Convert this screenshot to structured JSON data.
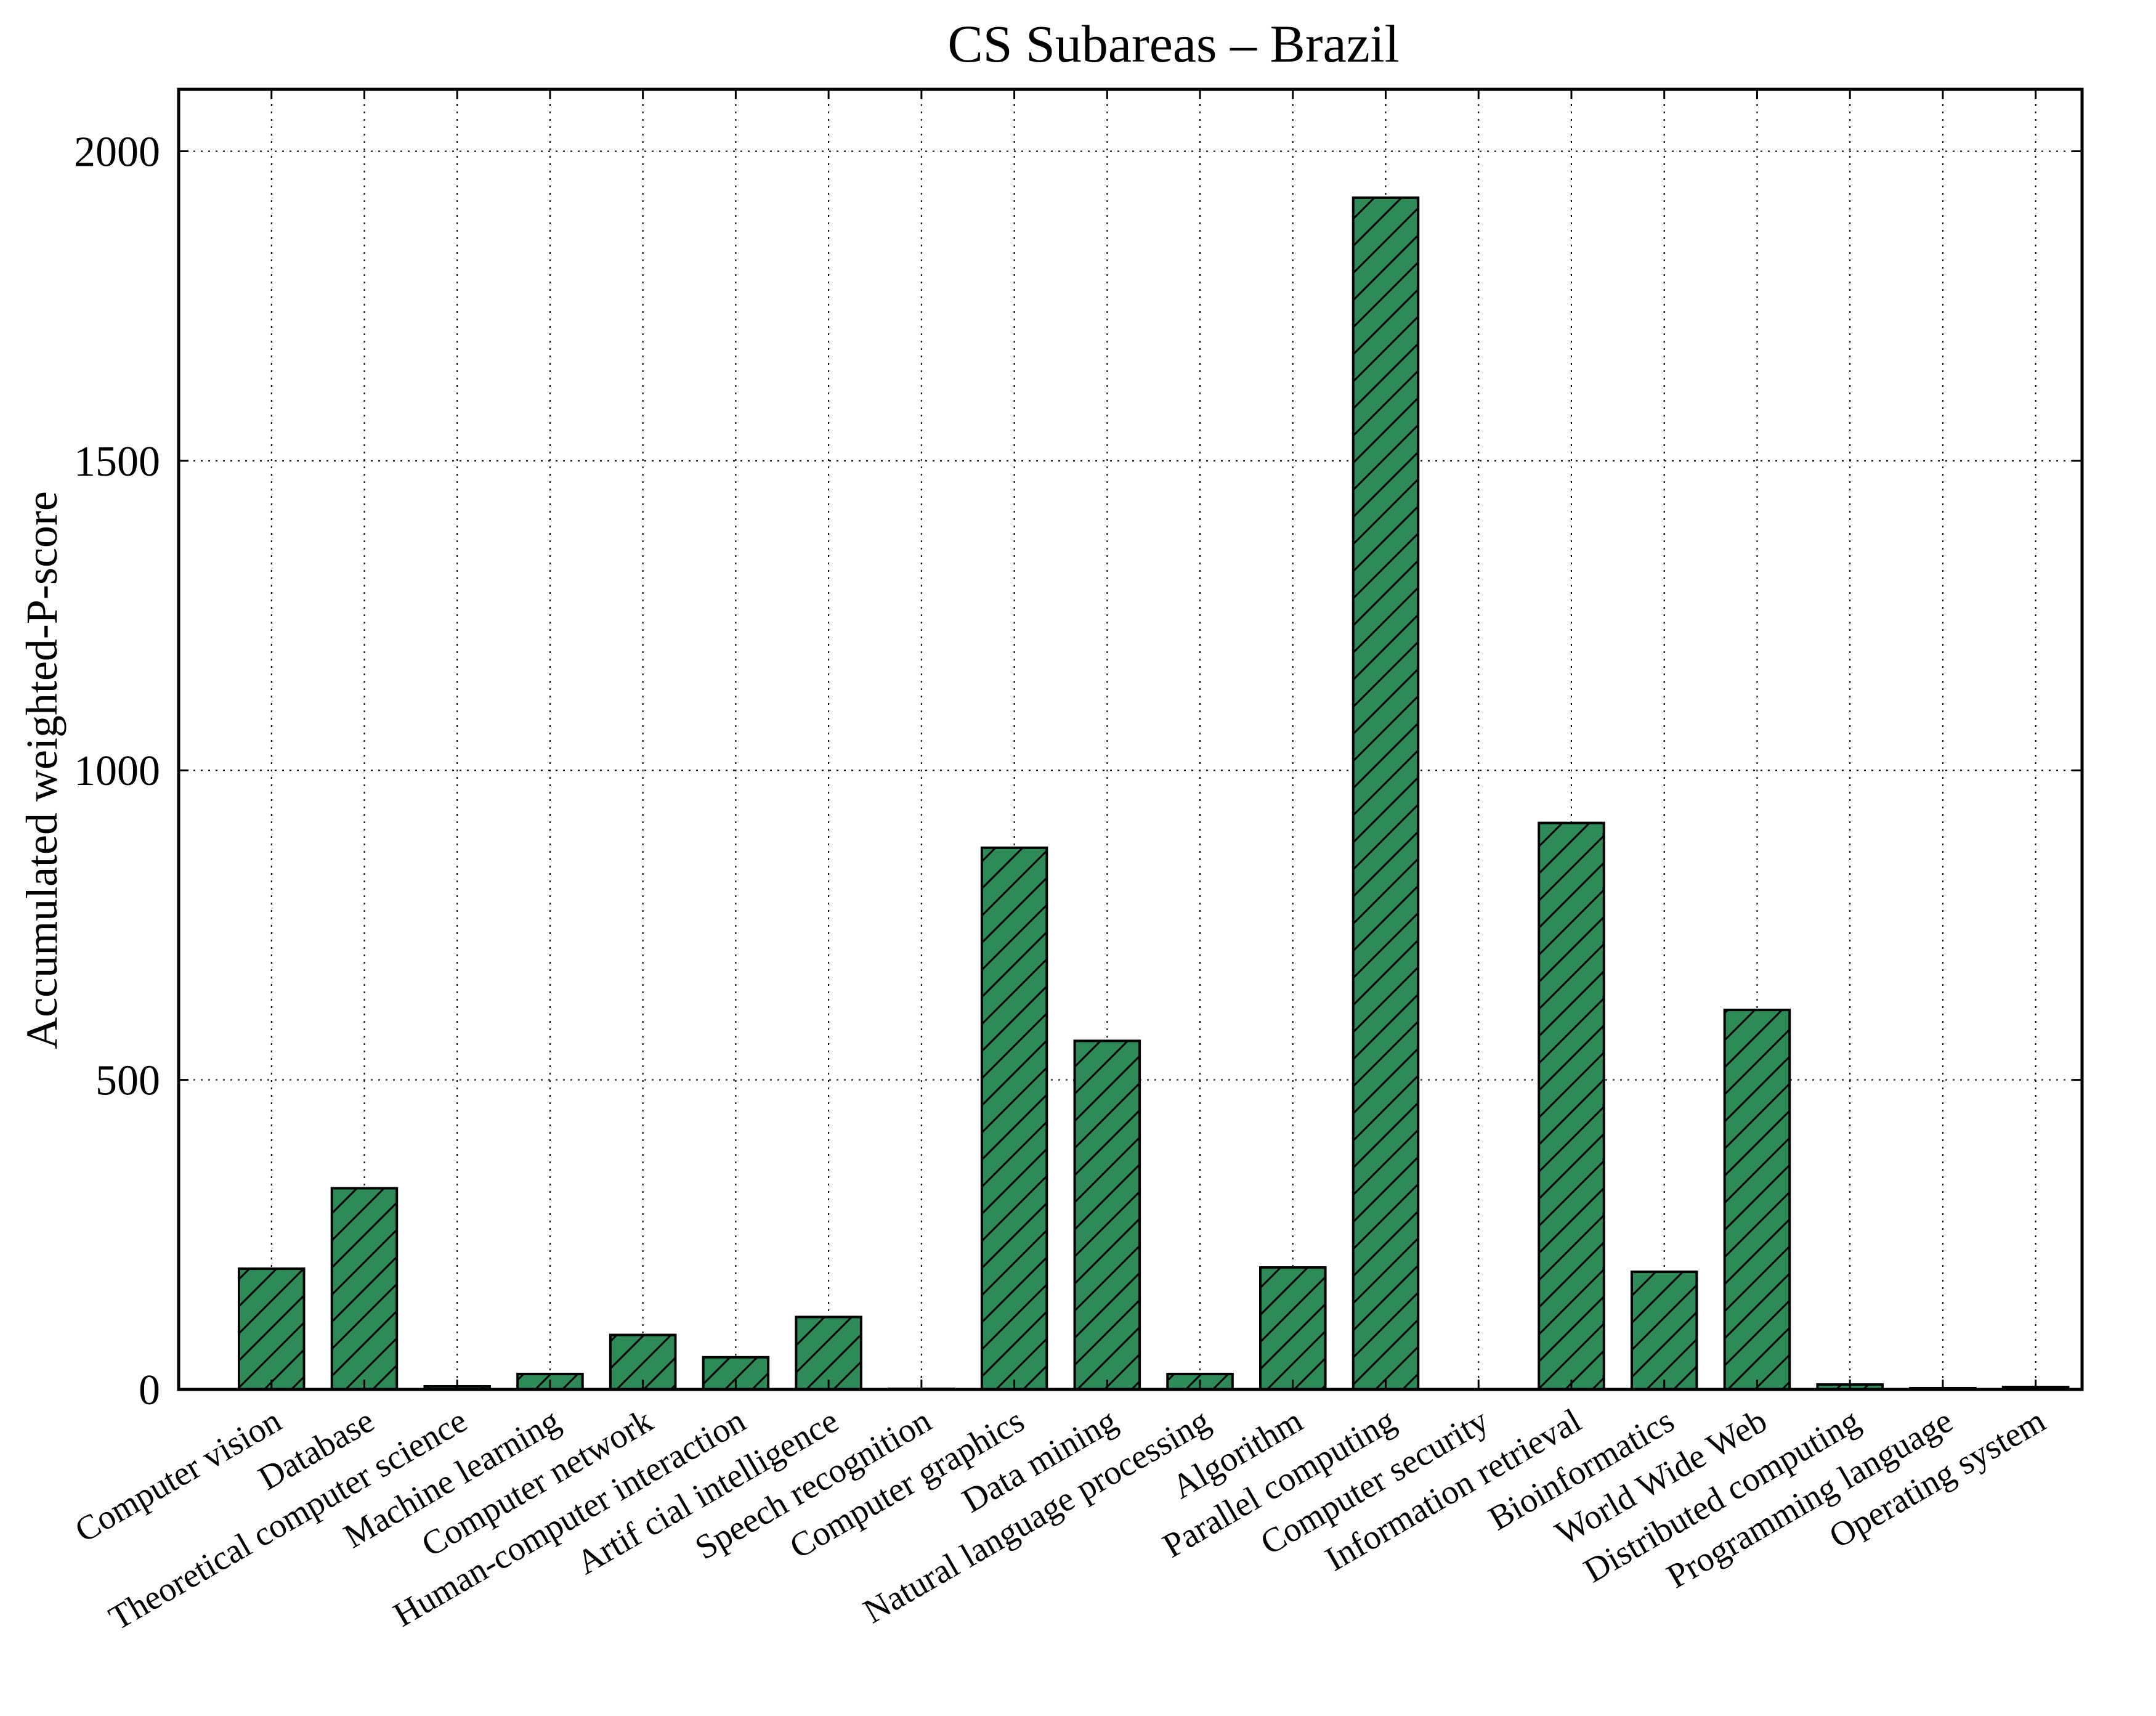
{
  "chart_data": {
    "type": "bar",
    "title": "CS Subareas – Brazil",
    "xlabel": "",
    "ylabel": "Accumulated weighted-P-score",
    "ylim": [
      0,
      2100
    ],
    "yticks": [
      0,
      500,
      1000,
      1500,
      2000
    ],
    "grid": true,
    "bar_color": "#2e8b57",
    "categories": [
      "Computer vision",
      "Database",
      "Theoretical computer science",
      "Machine learning",
      "Computer network",
      "Human-computer interaction",
      "Artif cial intelligence",
      "Speech recognition",
      "Computer graphics",
      "Data mining",
      "Natural language processing",
      "Algorithm",
      "Parallel computing",
      "Computer security",
      "Information retrieval",
      "Bioinformatics",
      "World Wide Web",
      "Distributed computing",
      "Programming language",
      "Operating system"
    ],
    "values": [
      195,
      325,
      5,
      25,
      88,
      52,
      117,
      1,
      875,
      563,
      25,
      197,
      1925,
      0,
      915,
      190,
      613,
      8,
      2,
      4
    ]
  }
}
